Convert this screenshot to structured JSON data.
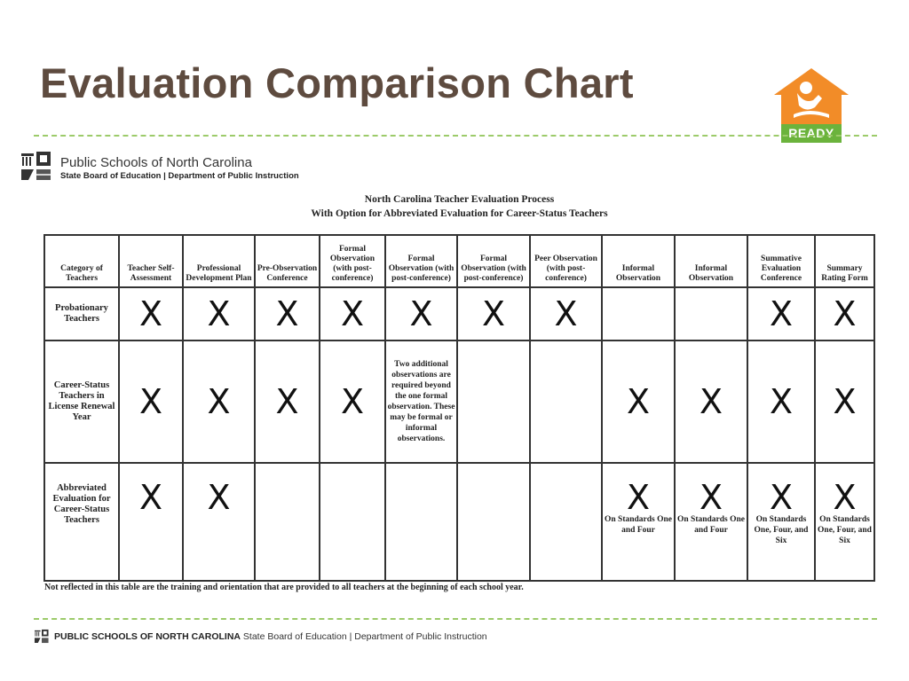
{
  "slide": {
    "title": "Evaluation Comparison Chart",
    "logo_text": "READY"
  },
  "brand": {
    "name": "Public Schools of North Carolina",
    "sub": "State Board of Education | Department of Public Instruction"
  },
  "document": {
    "title_line1": "North Carolina Teacher Evaluation Process",
    "title_line2": "With Option for Abbreviated Evaluation for Career-Status Teachers"
  },
  "table": {
    "headers": [
      "Category of Teachers",
      "Teacher Self-Assessment",
      "Professional Development Plan",
      "Pre-Observation Conference",
      "Formal Observation (with post-conference)",
      "Formal Observation (with post-conference)",
      "Formal Observation (with post-conference)",
      "Peer Observation (with post-conference)",
      "Informal Observation",
      "Informal Observation",
      "Summative Evaluation Conference",
      "Summary Rating Form"
    ],
    "mark": "X",
    "rows": [
      {
        "label": "Probationary Teachers",
        "cells": [
          "X",
          "X",
          "X",
          "X",
          "X",
          "X",
          "X",
          "",
          "",
          "X",
          "X"
        ]
      },
      {
        "label": "Career-Status Teachers in License Renewal Year",
        "cells": [
          "X",
          "X",
          "X",
          "X",
          "",
          "",
          "",
          "X",
          "X",
          "X",
          "X"
        ],
        "note": "Two additional observations are required beyond the one formal observation. These may be formal or informal observations."
      },
      {
        "label": "Abbreviated Evaluation for Career-Status Teachers",
        "cells": [
          "X",
          "X",
          "",
          "",
          "",
          "",
          "",
          "X",
          "X",
          "X",
          "X"
        ],
        "notes": [
          "",
          "",
          "",
          "",
          "",
          "",
          "",
          "On Standards One and Four",
          "On Standards One and Four",
          "On Standards One, Four, and Six",
          "On Standards One, Four, and Six"
        ]
      }
    ]
  },
  "footnote": "Not reflected in this table are the training and orientation that are provided to all teachers at the beginning of each school year.",
  "footer": {
    "org": "PUBLIC SCHOOLS OF NORTH CAROLINA",
    "dept": "State Board of Education | Department of Public Instruction"
  }
}
